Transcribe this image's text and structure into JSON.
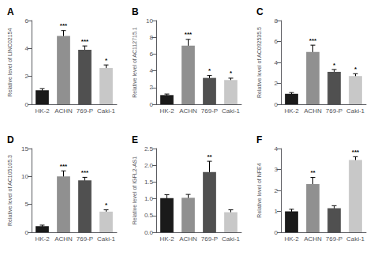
{
  "chart_data": [
    {
      "type": "bar",
      "title": "A",
      "ylabel": "Relative level of LINC02154",
      "categories": [
        "HK-2",
        "ACHN",
        "769-P",
        "Caki-1"
      ],
      "values": [
        1.0,
        4.9,
        3.9,
        2.6
      ],
      "errors": [
        0.12,
        0.38,
        0.28,
        0.22
      ],
      "annotations": [
        {
          "x": "ACHN",
          "text": "***"
        },
        {
          "x": "769-P",
          "text": "***"
        },
        {
          "x": "Caki-1",
          "text": "*"
        }
      ],
      "colors": [
        "#1a1a1a",
        "#909090",
        "#505050",
        "#c8c8c8"
      ],
      "ylim": [
        0,
        6
      ],
      "yticks": [
        0,
        2,
        4,
        6
      ],
      "grid": false
    },
    {
      "type": "bar",
      "title": "B",
      "ylabel": "Relative level of AC112715.1",
      "categories": [
        "HK-2",
        "ACHN",
        "769-P",
        "Caki-1"
      ],
      "values": [
        1.1,
        7.0,
        3.15,
        2.9
      ],
      "errors": [
        0.12,
        0.75,
        0.28,
        0.22
      ],
      "annotations": [
        {
          "x": "ACHN",
          "text": "***"
        },
        {
          "x": "769-P",
          "text": "*"
        },
        {
          "x": "Caki-1",
          "text": "*"
        }
      ],
      "colors": [
        "#1a1a1a",
        "#909090",
        "#505050",
        "#c8c8c8"
      ],
      "ylim": [
        0,
        10
      ],
      "yticks": [
        0,
        2,
        4,
        6,
        8,
        10
      ],
      "grid": false
    },
    {
      "type": "bar",
      "title": "C",
      "ylabel": "Relative level of AC092535.5",
      "categories": [
        "HK-2",
        "ACHN",
        "769-P",
        "Caki-1"
      ],
      "values": [
        1.0,
        5.0,
        3.1,
        2.7
      ],
      "errors": [
        0.12,
        0.65,
        0.22,
        0.22
      ],
      "annotations": [
        {
          "x": "ACHN",
          "text": "***"
        },
        {
          "x": "769-P",
          "text": "*"
        },
        {
          "x": "Caki-1",
          "text": "*"
        }
      ],
      "colors": [
        "#1a1a1a",
        "#909090",
        "#505050",
        "#c8c8c8"
      ],
      "ylim": [
        0,
        8
      ],
      "yticks": [
        0,
        2,
        4,
        6,
        8
      ],
      "grid": false
    },
    {
      "type": "bar",
      "title": "D",
      "ylabel": "Relative level of AC105105.3",
      "categories": [
        "HK-2",
        "ACHN",
        "769-P",
        "Caki-1"
      ],
      "values": [
        1.1,
        10.0,
        9.3,
        3.7
      ],
      "errors": [
        0.18,
        1.0,
        0.55,
        0.32
      ],
      "annotations": [
        {
          "x": "ACHN",
          "text": "***"
        },
        {
          "x": "769-P",
          "text": "***"
        },
        {
          "x": "Caki-1",
          "text": "*"
        }
      ],
      "colors": [
        "#1a1a1a",
        "#909090",
        "#505050",
        "#c8c8c8"
      ],
      "ylim": [
        0,
        15
      ],
      "yticks": [
        0,
        5,
        10,
        15
      ],
      "grid": false
    },
    {
      "type": "bar",
      "title": "E",
      "ylabel": "Relative level of IGFL2-AS1",
      "categories": [
        "HK-2",
        "ACHN",
        "769-P",
        "Caki-1"
      ],
      "values": [
        1.02,
        1.03,
        1.8,
        0.6
      ],
      "errors": [
        0.1,
        0.1,
        0.32,
        0.07
      ],
      "annotations": [
        {
          "x": "769-P",
          "text": "**"
        }
      ],
      "colors": [
        "#1a1a1a",
        "#909090",
        "#505050",
        "#c8c8c8"
      ],
      "ylim": [
        0,
        2.5
      ],
      "yticks": [
        {
          "value": 0,
          "label": "0.0"
        },
        0.5,
        {
          "value": 1,
          "label": "1.0"
        },
        1.5,
        {
          "value": 2,
          "label": "2.0"
        },
        2.5
      ],
      "grid": false
    },
    {
      "type": "bar",
      "title": "F",
      "ylabel": "Relative level of NFE4",
      "categories": [
        "HK-2",
        "ACHN",
        "769-P",
        "Caki-1"
      ],
      "values": [
        1.0,
        2.3,
        1.15,
        3.45
      ],
      "errors": [
        0.1,
        0.32,
        0.12,
        0.16
      ],
      "annotations": [
        {
          "x": "ACHN",
          "text": "**"
        },
        {
          "x": "Caki-1",
          "text": "***"
        }
      ],
      "colors": [
        "#1a1a1a",
        "#909090",
        "#505050",
        "#c8c8c8"
      ],
      "ylim": [
        0,
        4
      ],
      "yticks": [
        0,
        1,
        2,
        3,
        4
      ],
      "grid": false
    }
  ]
}
